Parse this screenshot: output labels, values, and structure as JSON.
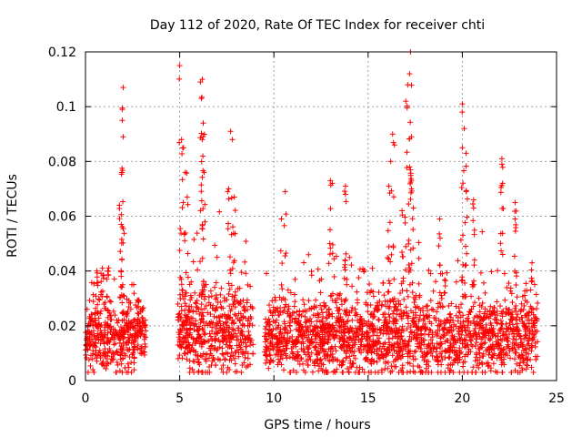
{
  "chart_data": {
    "type": "scatter",
    "marker": "plus",
    "color": "#ff0000",
    "title": "Day 112 of 2020, Rate Of TEC Index for receiver chti",
    "xlabel": "GPS time / hours",
    "ylabel": "ROTI / TECUs",
    "xlim": [
      0,
      25
    ],
    "ylim": [
      0,
      0.12
    ],
    "xticks": [
      0,
      5,
      10,
      15,
      20,
      25
    ],
    "xtick_labels": [
      "0",
      "5",
      "10",
      "15",
      "20",
      "25"
    ],
    "yticks": [
      0,
      0.02,
      0.04,
      0.06,
      0.08,
      0.1,
      0.12
    ],
    "ytick_labels": [
      "0",
      "0.02",
      "0.04",
      "0.06",
      "0.08",
      "0.1",
      "0.12"
    ],
    "grid": true,
    "series": [
      {
        "name": "ROTI",
        "data_segments": [
          {
            "start": 0.0,
            "end": 2.6,
            "base": 0.016,
            "spread": 0.012
          },
          {
            "start": 2.5,
            "end": 3.2,
            "base": 0.017,
            "spread": 0.01
          },
          {
            "start": 4.9,
            "end": 8.9,
            "base": 0.018,
            "spread": 0.016
          },
          {
            "start": 9.5,
            "end": 24.0,
            "base": 0.016,
            "spread": 0.014
          }
        ],
        "peaks": [
          {
            "x": 0.6,
            "y": 0.04
          },
          {
            "x": 0.9,
            "y": 0.041
          },
          {
            "x": 1.2,
            "y": 0.04
          },
          {
            "x": 1.8,
            "y": 0.064
          },
          {
            "x": 1.9,
            "y": 0.057
          },
          {
            "x": 1.95,
            "y": 0.095
          },
          {
            "x": 1.95,
            "y": 0.099
          },
          {
            "x": 2.0,
            "y": 0.089
          },
          {
            "x": 2.0,
            "y": 0.107
          },
          {
            "x": 2.8,
            "y": 0.027
          },
          {
            "x": 5.0,
            "y": 0.115
          },
          {
            "x": 5.1,
            "y": 0.088
          },
          {
            "x": 5.2,
            "y": 0.085
          },
          {
            "x": 5.3,
            "y": 0.076
          },
          {
            "x": 5.4,
            "y": 0.067
          },
          {
            "x": 6.1,
            "y": 0.109
          },
          {
            "x": 6.15,
            "y": 0.103
          },
          {
            "x": 6.2,
            "y": 0.11
          },
          {
            "x": 6.2,
            "y": 0.088
          },
          {
            "x": 6.25,
            "y": 0.094
          },
          {
            "x": 6.3,
            "y": 0.076
          },
          {
            "x": 7.7,
            "y": 0.091
          },
          {
            "x": 7.8,
            "y": 0.088
          },
          {
            "x": 7.9,
            "y": 0.067
          },
          {
            "x": 7.6,
            "y": 0.07
          },
          {
            "x": 10.6,
            "y": 0.069
          },
          {
            "x": 10.4,
            "y": 0.059
          },
          {
            "x": 13.0,
            "y": 0.073
          },
          {
            "x": 13.1,
            "y": 0.072
          },
          {
            "x": 13.8,
            "y": 0.071
          },
          {
            "x": 13.8,
            "y": 0.068
          },
          {
            "x": 16.3,
            "y": 0.09
          },
          {
            "x": 16.4,
            "y": 0.086
          },
          {
            "x": 16.2,
            "y": 0.08
          },
          {
            "x": 16.1,
            "y": 0.071
          },
          {
            "x": 16.8,
            "y": 0.062
          },
          {
            "x": 17.0,
            "y": 0.102
          },
          {
            "x": 17.1,
            "y": 0.108
          },
          {
            "x": 17.2,
            "y": 0.112
          },
          {
            "x": 17.25,
            "y": 0.12
          },
          {
            "x": 17.3,
            "y": 0.089
          },
          {
            "x": 17.2,
            "y": 0.078
          },
          {
            "x": 17.3,
            "y": 0.07
          },
          {
            "x": 17.4,
            "y": 0.063
          },
          {
            "x": 18.8,
            "y": 0.059
          },
          {
            "x": 20.0,
            "y": 0.101
          },
          {
            "x": 20.1,
            "y": 0.092
          },
          {
            "x": 20.0,
            "y": 0.085
          },
          {
            "x": 20.2,
            "y": 0.083
          },
          {
            "x": 20.2,
            "y": 0.069
          },
          {
            "x": 20.6,
            "y": 0.066
          },
          {
            "x": 20.6,
            "y": 0.063
          },
          {
            "x": 22.1,
            "y": 0.081
          },
          {
            "x": 22.1,
            "y": 0.079
          },
          {
            "x": 22.8,
            "y": 0.065
          },
          {
            "x": 22.8,
            "y": 0.059
          },
          {
            "x": 23.7,
            "y": 0.043
          }
        ]
      }
    ]
  }
}
